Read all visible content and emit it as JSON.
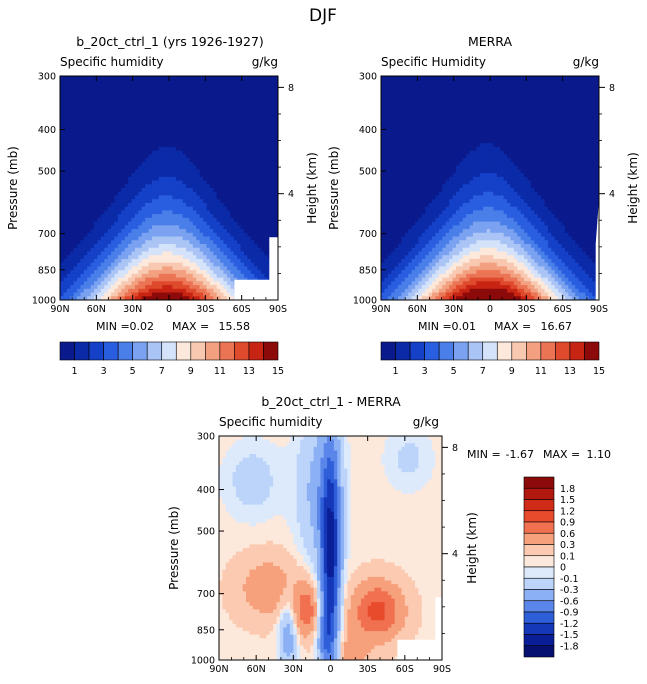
{
  "figure": {
    "season": "DJF"
  },
  "chart_data": [
    {
      "type": "heatmap",
      "title": "b_20ct_ctrl_1 (yrs 1926-1927)",
      "left_subtitle": "Specific humidity",
      "units": "g/kg",
      "ylabel": "Pressure (mb)",
      "y2label": "Height (km)",
      "x_ticks": [
        "90N",
        "60N",
        "30N",
        "0",
        "30S",
        "60S",
        "90S"
      ],
      "y_ticks": [
        "300",
        "400",
        "500",
        "700",
        "850",
        "1000"
      ],
      "y2_ticks": [
        "8",
        "4"
      ],
      "min_label": "MIN =",
      "min_value": "0.02",
      "max_label": "MAX =",
      "max_value": "15.58",
      "field_max": 15.58,
      "colorbar": {
        "orientation": "horizontal",
        "labels": [
          "1",
          "3",
          "5",
          "7",
          "9",
          "11",
          "13",
          "15"
        ],
        "colors": [
          "#0a1a8c",
          "#0a2aa8",
          "#1540c8",
          "#2a5ee0",
          "#4a7ee8",
          "#7aa2f0",
          "#aac4f6",
          "#d4e2fa",
          "#fde8dc",
          "#f8c8b0",
          "#f2a080",
          "#ea7454",
          "#e04a2c",
          "#c82414",
          "#8c0a0a"
        ]
      }
    },
    {
      "type": "heatmap",
      "title": "MERRA",
      "left_subtitle": "Specific Humidity",
      "units": "g/kg",
      "ylabel": "Pressure (mb)",
      "y2label": "Height (km)",
      "x_ticks": [
        "90N",
        "60N",
        "30N",
        "0",
        "30S",
        "60S",
        "90S"
      ],
      "y_ticks": [
        "300",
        "400",
        "500",
        "700",
        "850",
        "1000"
      ],
      "y2_ticks": [
        "8",
        "4"
      ],
      "min_label": "MIN =",
      "min_value": "0.01",
      "max_label": "MAX =",
      "max_value": "16.67",
      "field_max": 16.67,
      "colorbar": {
        "orientation": "horizontal",
        "labels": [
          "1",
          "3",
          "5",
          "7",
          "9",
          "11",
          "13",
          "15"
        ],
        "colors": [
          "#0a1a8c",
          "#0a2aa8",
          "#1540c8",
          "#2a5ee0",
          "#4a7ee8",
          "#7aa2f0",
          "#aac4f6",
          "#d4e2fa",
          "#fde8dc",
          "#f8c8b0",
          "#f2a080",
          "#ea7454",
          "#e04a2c",
          "#c82414",
          "#8c0a0a"
        ]
      }
    },
    {
      "type": "heatmap",
      "title": "b_20ct_ctrl_1 - MERRA",
      "left_subtitle": "Specific humidity",
      "units": "g/kg",
      "ylabel": "Pressure (mb)",
      "y2label": "Height (km)",
      "x_ticks": [
        "90N",
        "60N",
        "30N",
        "0",
        "30S",
        "60S",
        "90S"
      ],
      "y_ticks": [
        "300",
        "400",
        "500",
        "700",
        "850",
        "1000"
      ],
      "y2_ticks": [
        "8",
        "4"
      ],
      "min_label": "MIN =",
      "min_value": "-1.67",
      "max_label": "MAX =",
      "max_value": "1.10",
      "colorbar": {
        "orientation": "vertical",
        "labels": [
          "1.8",
          "1.5",
          "1.2",
          "0.9",
          "0.6",
          "0.3",
          "0.1",
          "0",
          "-0.1",
          "-0.3",
          "-0.6",
          "-0.9",
          "-1.2",
          "-1.5",
          "-1.8"
        ],
        "colors": [
          "#8c0a0a",
          "#b01810",
          "#d02a18",
          "#e84a2c",
          "#f07050",
          "#f6a07c",
          "#fbcab0",
          "#fde8dc",
          "#ddeafc",
          "#bcd4fa",
          "#8cb0f4",
          "#5a86ea",
          "#2e5ed8",
          "#1538b8",
          "#0a1e98",
          "#06106e"
        ]
      }
    }
  ]
}
